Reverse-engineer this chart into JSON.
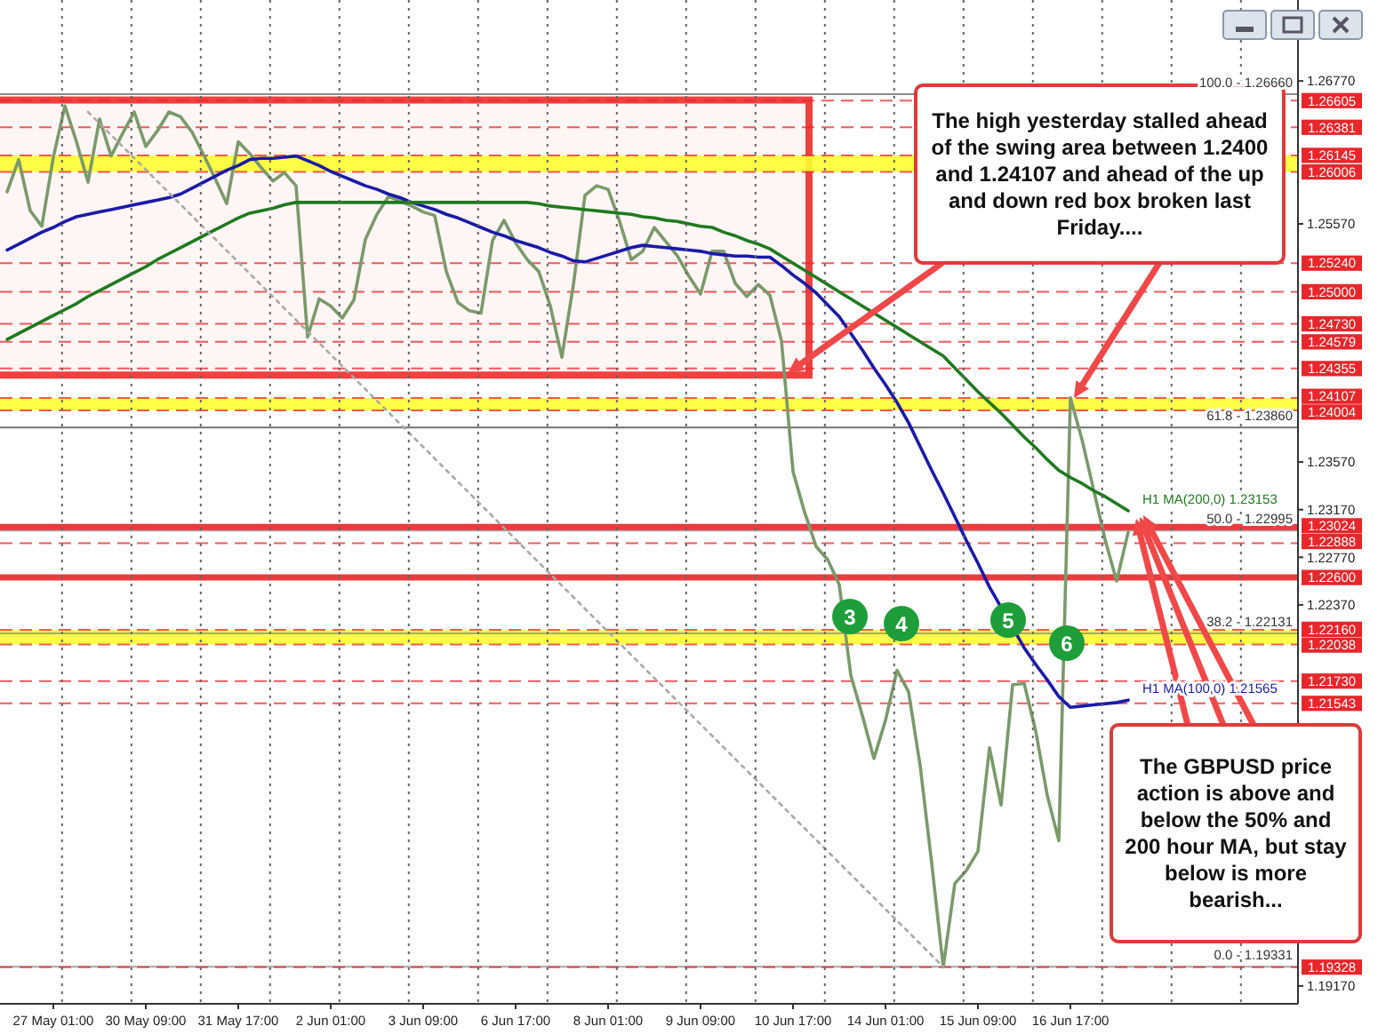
{
  "chart_data": {
    "type": "line",
    "categories": [
      null,
      null,
      null,
      null,
      "27 May 01:00",
      null,
      null,
      null,
      null,
      null,
      null,
      null,
      "30 May 09:00",
      null,
      null,
      null,
      null,
      null,
      null,
      null,
      "31 May 17:00",
      null,
      null,
      null,
      null,
      null,
      null,
      null,
      "2 Jun 01:00",
      null,
      null,
      null,
      null,
      null,
      null,
      null,
      "3 Jun 09:00",
      null,
      null,
      null,
      null,
      null,
      null,
      null,
      "6 Jun 17:00",
      null,
      null,
      null,
      null,
      null,
      null,
      null,
      "8 Jun 01:00",
      null,
      null,
      null,
      null,
      null,
      null,
      null,
      "9 Jun 09:00",
      null,
      null,
      null,
      null,
      null,
      null,
      null,
      "10 Jun 17:00",
      null,
      null,
      null,
      null,
      null,
      null,
      null,
      "14 Jun 01:00",
      null,
      null,
      null,
      null,
      null,
      null,
      null,
      "15 Jun 09:00",
      null,
      null,
      null,
      null,
      null,
      null,
      null,
      "16 Jun 17:00",
      null,
      null,
      null,
      null,
      null,
      null,
      null,
      null,
      null,
      null,
      null,
      null,
      null,
      null,
      null,
      null,
      null,
      null,
      null
    ],
    "ylim": [
      1.1902,
      1.2745
    ],
    "yticks": [
      {
        "value": 1.2677,
        "label": "1.26770"
      },
      {
        "value": 1.2557,
        "label": "1.25570"
      },
      {
        "value": 1.2357,
        "label": "1.23570"
      },
      {
        "value": 1.2317,
        "label": "1.23170"
      },
      {
        "value": 1.2277,
        "label": "1.22770"
      },
      {
        "value": 1.2237,
        "label": "1.22370"
      },
      {
        "value": 1.1917,
        "label": "1.19170"
      }
    ],
    "series": [
      {
        "color": "#7a9a6a",
        "values": [
          1.2584,
          1.2611,
          1.2568,
          1.2555,
          1.2613,
          1.2656,
          1.2626,
          1.2592,
          1.2645,
          1.2614,
          1.2633,
          1.2651,
          1.2622,
          1.2635,
          1.2651,
          1.2647,
          1.2634,
          1.2615,
          1.2595,
          1.2574,
          1.2626,
          1.2616,
          1.2604,
          1.2593,
          1.26,
          1.2589,
          1.2462,
          1.2494,
          1.2488,
          1.2478,
          1.2493,
          1.2544,
          1.2565,
          1.258,
          1.2576,
          1.2572,
          1.2567,
          1.2564,
          1.2517,
          1.2491,
          1.2484,
          1.2482,
          1.2543,
          1.256,
          1.2541,
          1.2527,
          1.2517,
          1.2488,
          1.2445,
          1.2506,
          1.2581,
          1.2589,
          1.2586,
          1.2559,
          1.2527,
          1.2534,
          1.2554,
          1.2542,
          1.253,
          1.2513,
          1.2498,
          1.2534,
          1.2534,
          1.2507,
          1.2496,
          1.2506,
          1.2497,
          1.2459,
          1.2349,
          1.2315,
          1.2286,
          1.2275,
          1.2254,
          1.2178,
          1.2144,
          1.2108,
          1.214,
          1.2182,
          1.2164,
          1.2102,
          1.202,
          1.1933,
          1.2003,
          1.2014,
          1.203,
          1.2117,
          1.2069,
          1.217,
          1.2171,
          1.2131,
          1.2077,
          1.2039,
          1.2411,
          1.2376,
          1.2334,
          1.2292,
          1.2257,
          1.2298,
          null,
          null,
          null,
          null,
          null,
          null,
          null,
          null,
          null,
          null,
          null,
          null,
          null,
          null
        ]
      },
      {
        "color": "#1a1aa8",
        "values": [
          1.2535,
          1.254,
          1.2545,
          1.255,
          1.2554,
          1.2559,
          1.2563,
          1.2565,
          1.2567,
          1.2569,
          1.2571,
          1.2573,
          1.2575,
          1.2577,
          1.2579,
          1.2582,
          1.2587,
          1.2592,
          1.2597,
          1.2602,
          1.2606,
          1.2611,
          1.2612,
          1.2612,
          1.2613,
          1.2614,
          1.261,
          1.2606,
          1.2601,
          1.2597,
          1.2593,
          1.2589,
          1.2586,
          1.2582,
          1.2579,
          1.2575,
          1.2572,
          1.2569,
          1.2565,
          1.2562,
          1.2558,
          1.2554,
          1.255,
          1.2547,
          1.2543,
          1.254,
          1.2537,
          1.2533,
          1.253,
          1.2526,
          1.2525,
          1.2528,
          1.2531,
          1.2534,
          1.2537,
          1.2539,
          1.2538,
          1.2537,
          1.2536,
          1.2535,
          1.2534,
          1.2532,
          1.2531,
          1.253,
          1.253,
          1.2529,
          1.2529,
          1.2522,
          1.2514,
          1.2507,
          1.2499,
          1.2489,
          1.2479,
          1.2465,
          1.2451,
          1.2436,
          1.2422,
          1.2407,
          1.239,
          1.237,
          1.235,
          1.2331,
          1.2311,
          1.2291,
          1.2272,
          1.2252,
          null,
          null,
          1.2201,
          1.2187,
          1.2174,
          1.216,
          1.2151,
          1.2152,
          1.2153,
          1.2154,
          1.2155,
          1.2157,
          null,
          null,
          null,
          null,
          null,
          null,
          null,
          null,
          null,
          null,
          null,
          null,
          null,
          null
        ]
      },
      {
        "color": "#1f7a1f",
        "values": [
          1.246,
          1.2465,
          1.247,
          1.2475,
          1.248,
          1.2485,
          1.249,
          1.2496,
          1.2501,
          1.2506,
          1.2511,
          1.2516,
          1.2521,
          1.2527,
          1.2532,
          1.2537,
          1.2542,
          1.2547,
          1.2552,
          1.2557,
          1.2562,
          1.2566,
          1.2568,
          1.257,
          1.2573,
          1.2575,
          1.2575,
          1.2575,
          1.2575,
          1.2575,
          1.2575,
          1.2575,
          1.2575,
          1.2575,
          1.2575,
          1.2575,
          1.2575,
          1.2575,
          1.2575,
          1.2575,
          1.2575,
          1.2575,
          1.2575,
          1.2575,
          1.2575,
          1.2575,
          1.2574,
          1.2572,
          1.2571,
          1.257,
          1.2569,
          1.2568,
          1.2567,
          1.2566,
          1.2565,
          1.2563,
          1.2562,
          1.256,
          1.2559,
          1.2557,
          1.2555,
          1.2554,
          1.255,
          1.2547,
          1.2543,
          1.254,
          1.2536,
          1.253,
          1.2524,
          1.2518,
          1.2512,
          1.2506,
          1.25,
          1.2494,
          1.2488,
          1.2482,
          1.2476,
          1.247,
          1.2464,
          1.2458,
          1.2452,
          1.2446,
          1.2436,
          1.2426,
          1.2416,
          1.2407,
          1.2398,
          1.2388,
          1.2378,
          1.2369,
          1.2359,
          1.235,
          1.2344,
          1.2339,
          1.2333,
          1.2328,
          1.2322,
          1.2316,
          null,
          null,
          null,
          null,
          null,
          null,
          null,
          null,
          null,
          null,
          null,
          null,
          null,
          null
        ]
      },
      {
        "color": "#a8a8a8",
        "line_style": "dotted",
        "values": [
          null,
          null,
          null,
          null,
          null,
          null,
          null,
          1.2651,
          null,
          null,
          null,
          null,
          null,
          null,
          null,
          null,
          null,
          null,
          null,
          null,
          null,
          null,
          null,
          null,
          null,
          null,
          null,
          null,
          null,
          null,
          null,
          null,
          null,
          null,
          null,
          null,
          null,
          null,
          null,
          null,
          null,
          null,
          null,
          null,
          null,
          null,
          null,
          null,
          null,
          null,
          null,
          null,
          null,
          null,
          null,
          null,
          null,
          null,
          null,
          null,
          null,
          null,
          null,
          null,
          null,
          null,
          null,
          null,
          null,
          null,
          null,
          null,
          null,
          null,
          null,
          null,
          null,
          null,
          null,
          null,
          null,
          1.1933,
          null,
          null,
          null,
          null,
          null,
          null,
          null,
          null,
          null,
          null,
          null,
          null,
          null,
          null,
          null,
          null,
          null,
          null,
          null,
          null,
          null,
          null,
          null,
          null,
          null,
          null,
          null,
          null,
          null,
          null
        ]
      }
    ],
    "bands": [
      {
        "axis": "y",
        "from": 1.243,
        "to": 1.2661,
        "color": "#f04040"
      },
      {
        "axis": "y",
        "from": 1.26006,
        "to": 1.26145,
        "color": "#ffff33"
      },
      {
        "axis": "y",
        "from": 1.24004,
        "to": 1.24107,
        "color": "#ffff33"
      },
      {
        "axis": "y",
        "from": 1.22038,
        "to": 1.2216,
        "color": "#ffff33"
      }
    ],
    "ref_lines": [
      {
        "axis": "y",
        "value": 1.2666,
        "color": "#666666",
        "line_style": "solid"
      },
      {
        "axis": "y",
        "value": 1.2386,
        "color": "#444444",
        "line_style": "solid"
      },
      {
        "axis": "y",
        "value": 1.22995,
        "color": "#888888",
        "line_style": "solid"
      },
      {
        "axis": "y",
        "value": 1.22131,
        "color": "#888888",
        "line_style": "solid"
      },
      {
        "axis": "y",
        "value": 1.19331,
        "color": "#888888",
        "line_style": "solid"
      },
      {
        "axis": "y",
        "value": 1.26605,
        "label": "1.26605",
        "color": "#e8262b",
        "line_style": "dashed"
      },
      {
        "axis": "y",
        "value": 1.26381,
        "label": "1.26381",
        "color": "#e8262b",
        "line_style": "dashed"
      },
      {
        "axis": "y",
        "value": 1.26145,
        "label": "1.26145",
        "color": "#e8262b",
        "line_style": "dashed"
      },
      {
        "axis": "y",
        "value": 1.26006,
        "label": "1.26006",
        "color": "#e8262b",
        "line_style": "dashed"
      },
      {
        "axis": "y",
        "value": 1.2524,
        "label": "1.25240",
        "color": "#e8262b",
        "line_style": "dashed"
      },
      {
        "axis": "y",
        "value": 1.25,
        "label": "1.25000",
        "color": "#e8262b",
        "line_style": "dashed"
      },
      {
        "axis": "y",
        "value": 1.2473,
        "label": "1.24730",
        "color": "#e8262b",
        "line_style": "dashed"
      },
      {
        "axis": "y",
        "value": 1.24579,
        "label": "1.24579",
        "color": "#e8262b",
        "line_style": "dashed"
      },
      {
        "axis": "y",
        "value": 1.24355,
        "label": "1.24355",
        "color": "#e8262b",
        "line_style": "dashed"
      },
      {
        "axis": "y",
        "value": 1.24107,
        "label": "1.24107",
        "color": "#e8262b",
        "line_style": "dashed"
      },
      {
        "axis": "y",
        "value": 1.24004,
        "label": "1.24004",
        "color": "#e8262b",
        "line_style": "dashed"
      },
      {
        "axis": "y",
        "value": 1.23024,
        "label": "1.23024",
        "color": "#e8262b",
        "line_style": "solid"
      },
      {
        "axis": "y",
        "value": 1.22888,
        "label": "1.22888",
        "color": "#e8262b",
        "line_style": "dashed"
      },
      {
        "axis": "y",
        "value": 1.226,
        "label": "1.22600",
        "color": "#e8262b",
        "line_style": "solid"
      },
      {
        "axis": "y",
        "value": 1.2216,
        "label": "1.22160",
        "color": "#e8262b",
        "line_style": "dashed"
      },
      {
        "axis": "y",
        "value": 1.22038,
        "label": "1.22038",
        "color": "#e8262b",
        "line_style": "dashed"
      },
      {
        "axis": "y",
        "value": 1.2173,
        "label": "1.21730",
        "color": "#e8262b",
        "line_style": "dashed"
      },
      {
        "axis": "y",
        "value": 1.21543,
        "label": "1.21543",
        "color": "#e8262b",
        "line_style": "dashed"
      },
      {
        "axis": "y",
        "value": 1.19328,
        "label": "1.19328",
        "color": "#e8262b",
        "line_style": "dashed"
      }
    ],
    "annotations": [
      "The high yesterday stalled ahead of the swing area between 1.2400 and 1.24107 and ahead of the up and down red box broken last Friday....",
      "The GBPUSD price action is above and below the 50% and 200 hour MA, but stay below is more bearish...",
      "3",
      "4",
      "5",
      "6",
      "H1 MA(200,0) 1.23153",
      "H1 MA(100,0) 1.21565",
      "100.0 - 1.26660",
      "61.8 - 1.23860",
      "50.0 - 1.22995",
      "38.2 - 1.22131",
      "0.0 - 1.19331"
    ]
  }
}
